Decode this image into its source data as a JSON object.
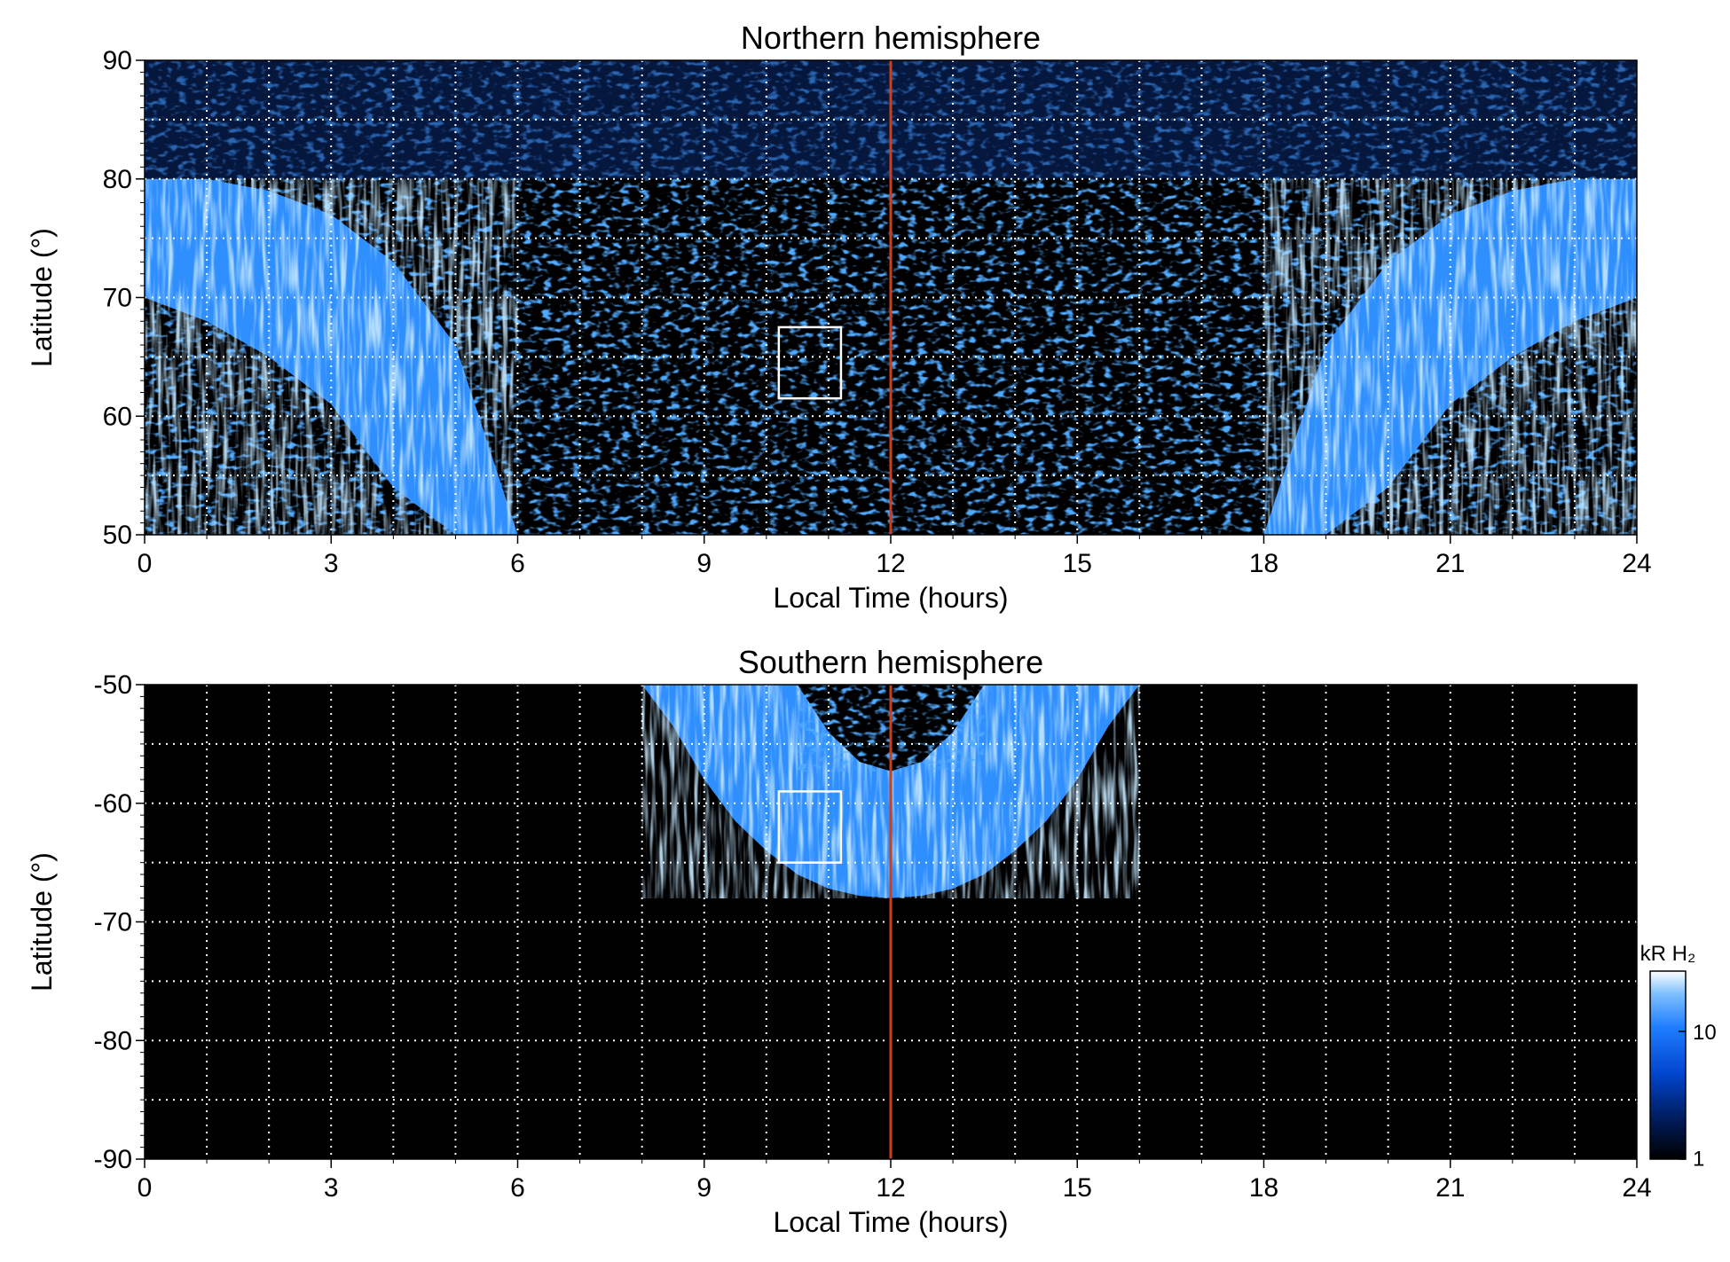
{
  "chart_data": [
    {
      "type": "heatmap",
      "title": "Northern hemisphere",
      "xlabel": "Local Time (hours)",
      "ylabel": "Latitude (°)",
      "xlim": [
        0,
        24
      ],
      "ylim": [
        50,
        90
      ],
      "xticks": [
        "0",
        "3",
        "6",
        "9",
        "12",
        "15",
        "18",
        "21",
        "24"
      ],
      "yticks": [
        "50",
        "60",
        "70",
        "80",
        "90"
      ],
      "grid": true,
      "reference_line_local_time": 12,
      "highlight_box": {
        "lt_range": [
          10.2,
          11.2
        ],
        "lat_range": [
          61.5,
          67.5
        ]
      },
      "auroral_oval_boundary": {
        "local_time": [
          0,
          1,
          2,
          3,
          4,
          5,
          6,
          18,
          19,
          20,
          21,
          22,
          23,
          24
        ],
        "poleward_latitude": [
          80,
          80,
          79,
          77,
          73,
          66,
          50,
          50,
          66,
          73,
          77,
          79,
          80,
          80
        ],
        "equatorward_latitude": [
          70,
          68,
          65,
          61,
          54,
          50,
          50,
          50,
          50,
          54,
          61,
          65,
          68,
          70
        ]
      }
    },
    {
      "type": "heatmap",
      "title": "Southern hemisphere",
      "xlabel": "Local Time (hours)",
      "ylabel": "Latitude (°)",
      "xlim": [
        0,
        24
      ],
      "ylim": [
        -90,
        -50
      ],
      "xticks": [
        "0",
        "3",
        "6",
        "9",
        "12",
        "15",
        "18",
        "21",
        "24"
      ],
      "yticks": [
        "-50",
        "-60",
        "-70",
        "-80",
        "-90"
      ],
      "grid": true,
      "reference_line_local_time": 12,
      "highlight_box": {
        "lt_range": [
          10.2,
          11.2
        ],
        "lat_range": [
          -65,
          -59
        ]
      },
      "auroral_oval_boundary": {
        "local_time": [
          8.0,
          8.5,
          9,
          9.5,
          10,
          10.5,
          11,
          11.5,
          12,
          12.5,
          13,
          13.5,
          14,
          14.5,
          15,
          15.5,
          16.0
        ],
        "outer_latitude": [
          -50,
          -53.5,
          -58,
          -61.5,
          -64,
          -66,
          -67.2,
          -67.8,
          -68,
          -67.8,
          -67.2,
          -66,
          -64,
          -61.5,
          -58,
          -53.5,
          -50
        ],
        "inner_local_time": [
          10.5,
          11,
          11.5,
          12,
          12.5,
          13,
          13.5
        ],
        "inner_latitude": [
          -50,
          -54,
          -56.5,
          -57.3,
          -56.5,
          -54,
          -50
        ]
      }
    }
  ],
  "colorbar": {
    "label": "kR H₂",
    "scale": "log",
    "range": [
      1,
      30
    ],
    "ticks": [
      "1",
      "10"
    ],
    "colors": [
      "#000000",
      "#001a55",
      "#0044cc",
      "#1f7dff",
      "#7fc0ff",
      "#ffffff"
    ]
  },
  "colors": {
    "background": "#000000",
    "oval": "#2f8fff",
    "oval_bright": "#9fd2ff",
    "grid": "#ffffff",
    "reference_line": "#c8401e",
    "box": "#ffffff"
  }
}
